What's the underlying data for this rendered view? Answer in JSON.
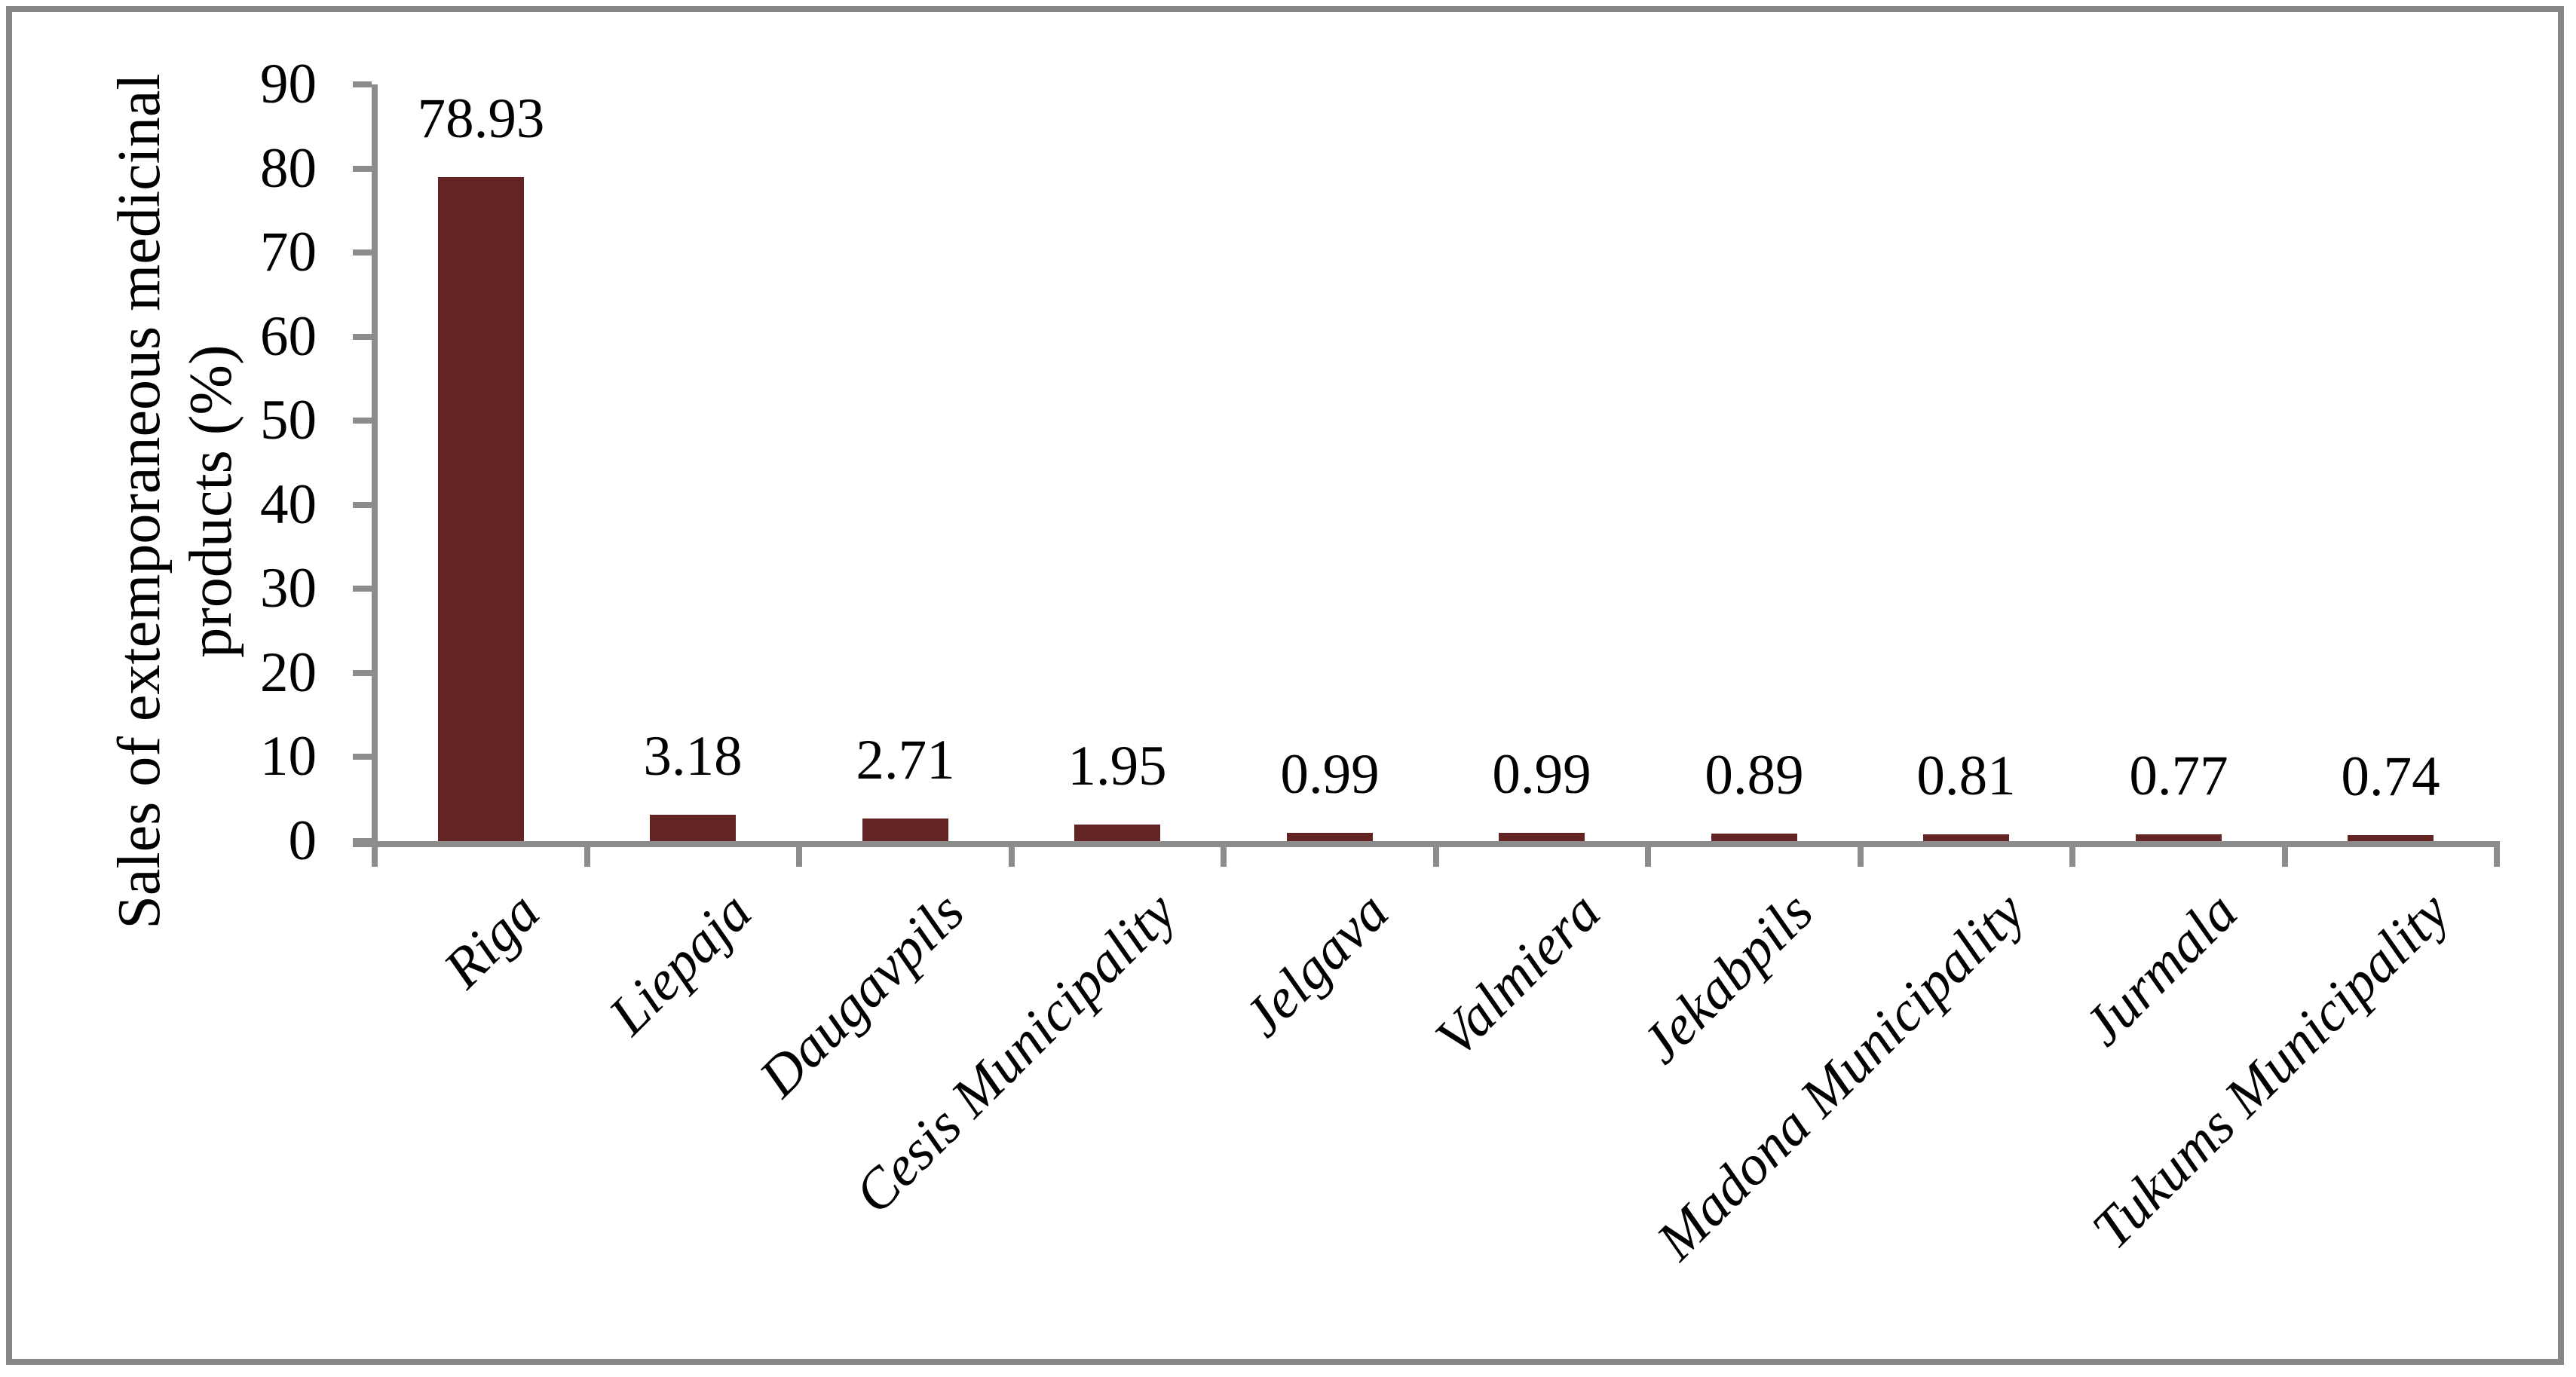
{
  "figure": {
    "background_color": "#FFFFFF",
    "border_color": "#878787",
    "text_color": "#000000"
  },
  "chart_data": {
    "type": "bar",
    "title": "",
    "xlabel": "",
    "ylabel": "Sales of extemporaneous medicinal products (%)",
    "ylabel_lines": [
      "Sales of extemporaneous medicinal",
      "products (%)"
    ],
    "categories": [
      "Riga",
      "Liepaja",
      "Daugavpils",
      "Cesis Municipality",
      "Jelgava",
      "Valmiera",
      "Jekabpils",
      "Madona Municipality",
      "Jurmala",
      "Tukums Municipality"
    ],
    "values": [
      78.93,
      3.18,
      2.71,
      1.95,
      0.99,
      0.99,
      0.89,
      0.81,
      0.77,
      0.74
    ],
    "data_labels": [
      "78.93",
      "3.18",
      "2.71",
      "1.95",
      "0.99",
      "0.99",
      "0.89",
      "0.81",
      "0.77",
      "0.74"
    ],
    "ylim": [
      0,
      90
    ],
    "ytick_interval": 10,
    "yticks": [
      0,
      10,
      20,
      30,
      40,
      50,
      60,
      70,
      80,
      90
    ],
    "ytick_labels": [
      "0",
      "10",
      "20",
      "30",
      "40",
      "50",
      "60",
      "70",
      "80",
      "90"
    ],
    "bar_color": "#632423",
    "axis_color": "#8C8C8C",
    "grid": false,
    "legend": "none",
    "category_label_rotation_deg": 45,
    "data_label_position": "outside-end"
  }
}
